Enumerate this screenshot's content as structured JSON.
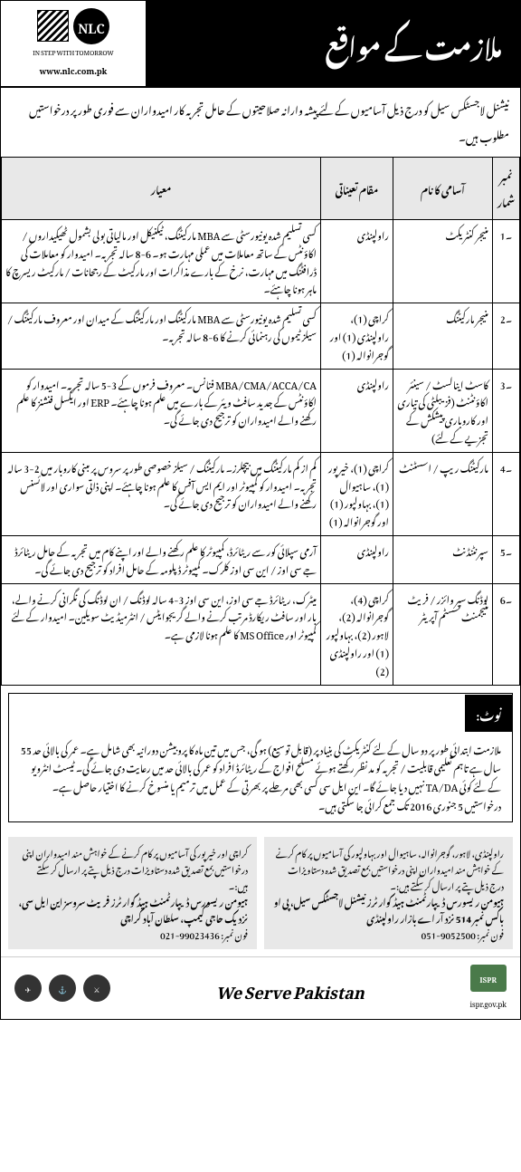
{
  "header": {
    "title": "ملازمت کے مواقع",
    "logo_text": "NLC",
    "tagline": "IN STEP WITH TOMORROW",
    "url": "www.nlc.com.pk"
  },
  "intro": "نیشنل لاجسٹکس سیل کو درج ذیل آسامیوں کے لئے پیشہ وارانہ صلاحیتوں کے حامل تجربہ کار امیدواران سے فوری طور پر درخواستیں مطلوب ہیں۔",
  "columns": {
    "sno": "نمبر شمار",
    "post": "آسامی کا نام",
    "location": "مقام تعیناتی",
    "criteria": "معیار"
  },
  "rows": [
    {
      "sno": "۔1",
      "post": "منیجر کنٹریکٹ",
      "location": "راولپنڈی",
      "criteria": "کسی تسلیم شدہ یونیورسٹی سے MBA مارکیٹنگ، ٹیکنیکل اور مالیاتی بولی بشمول ٹھیکیداروں / اکاؤنٹس کے ساتھ معاملات میں عملی مہارت ہو۔ 6-8 سالہ تجربہ۔ امیدوار کو معاملات کی ڈرافٹنگ میں مہارت، نرخ کے بارے مذاکرات اور مارکیٹ کے رجحانات / مارکیٹ ریسرچ کا ماہر ہونا چاہئے۔"
    },
    {
      "sno": "۔2",
      "post": "منیجر مارکیٹنگ",
      "location": "کراچی (1)، راولپنڈی (1) اور گوجرانوالہ (1)",
      "criteria": "کسی تسلیم شدہ یونیورسٹی سے MBA مارکیٹنگ اور مارکیٹنگ کے میدان اور معروف مارکیٹنگ / سیلز ٹیموں کی رہنمائی کرنے کا 6-8 سالہ تجربہ۔"
    },
    {
      "sno": "۔3",
      "post": "کاسٹ اینالسٹ / سینئر اکاؤنٹنٹ (فزیبلٹی کی تیاری اور کاروباری پیشکش کے تجزیے کے لئے)",
      "location": "راولپنڈی",
      "criteria": "MBA/CMA/ACCA/CA فنانس۔ معروف فرموں کے 3-5 سالہ تجربہ۔ امیدوار کو اکاؤنٹس کے جدید سافٹ ویئر کے بارے میں علم ہونا چاہئے۔ ERP اور ایکسل فنشنز کا علم رکھنے والے امیدواران کو ترجیح دی جائے گی۔"
    },
    {
      "sno": "۔4",
      "post": "مارکیٹنگ ریپ / اسسٹنٹ",
      "location": "کراچی (1)، خیرپور (1)، ساہیوال (1)، بہاولپور (1) اور گوجرانوالہ (1)",
      "criteria": "کم از کم مارکیٹنگ میں بیچلرز۔ مارکیٹنگ / سیلز خصوصی طور پر سروس پر مبنی کاروبار میں 2-3 سالہ تجربہ۔ امیدوار کو کمپیوٹر اور ایم ایس آفس کا علم ہونا چاہئے۔ اپنی ذاتی سواری اور لائسنس رکھنے والے امیدواران کو ترجیح دی جائے گی۔"
    },
    {
      "sno": "۔5",
      "post": "سپرنٹنڈنٹ",
      "location": "راولپنڈی",
      "criteria": "آرمی سپلائی کور سے ریٹائرڈ، کمپیوٹر کا علم رکھنے والے اور اپنے کام میں تجربہ کے حامل ریٹائرڈ جے سی اوز / این سی اوز کلرک۔ کمپیوٹر ڈپلومہ کے حامل افراد کو ترجیح دی جائے گی۔"
    },
    {
      "sno": "۔6",
      "post": "لوڈنگ سپر وائزر / فریٹ منیجمنٹ سسٹم آپریٹر",
      "location": "کراچی (4)، گوجرانوالہ (2)، لاہور (2)، بہاولپور (1) اور راولپنڈی (2)",
      "criteria": "میٹرک، ریٹائرڈ جے سی اوز، این سی اوز 3-4 سالہ لوڈنگ / ان لوڈنگ کی نگرانی کرنے والے، بار اور سافٹ ریکارڈ مرتب کرنے والے گریجوایٹس / انٹرمیڈیٹ سویلین۔ امیدوار کے لئے کمپیوٹر اور MS Office کا علم ہونا لازمی ہے۔"
    }
  ],
  "note": {
    "label": "نوٹ:",
    "body": "ملازمت ابتدائی طور پر دو سال کے لئے کنٹریکٹ کی بنیاد پر (قابل توسیع) ہو گی، جس میں تین ماہ کا پروبیشن دورانیہ بھی شامل ہے۔ عمر کی بالائی حد 55 سال ہے تاہم تعلیمی قابلیت / تجربہ کو مد نظر رکھتے ہوئے مسلح افواج کے ریٹائرڈ افراد کو عمر کی بالائی حد میں رعایت دی جائے گی۔ ٹیسٹ انٹرویو کے لئے کوئی TA/DA نہیں دیا جائے گا۔ این ایل سی کسی بھی مرحلے پر بھرتی کے عمل میں ترمیم یا منسوخ کرنے کا اختیار حاصل ہے۔ درخواستیں 5 جنوری 2016 تک جمع کرائی جا سکتی ہیں۔"
  },
  "addresses": [
    {
      "text": "راولپنڈی، لاہور، گوجرانوالہ، ساہیوال اور بہاولپور کی آسامیوں پر کام کرنے کے خواہش مند امیدواران اپنی درخواستیں بمع تصدیق شدہ دستاویزات درج ذیل پتے پر ارسال کر سکتے ہیں:۔",
      "dept": "ہیومن ریسورس ڈیپارٹمنٹ ہیڈ کوارٹرز نیشنل لاجسٹکس سیل، پی او باکس نمبر 514 نزد آر اے بازار راولپنڈی",
      "phone_label": "فون نمبر:",
      "phone": "051-9052500"
    },
    {
      "text": "کراچی اور خیرپور کی آسامیوں پر کام کرنے کے خواہش مند امیدواران اپنی درخواستیں بمع تصدیق شدہ دستاویزات درج ذیل پتے پر ارسال کر سکتے ہیں:۔",
      "dept": "ہیومن ریسورس ڈیپارٹمنٹ ہیڈ کوارٹرز فریٹ سروسز این ایل سی، نزدیک حاجی کیمپ، سلطان آباد کراچی",
      "phone_label": "فون نمبر:",
      "phone": "021-99023436"
    }
  ],
  "footer": {
    "motto": "We Serve Pakistan",
    "ispr": "ISPR",
    "ispr_url": "ispr.gov.pk"
  }
}
